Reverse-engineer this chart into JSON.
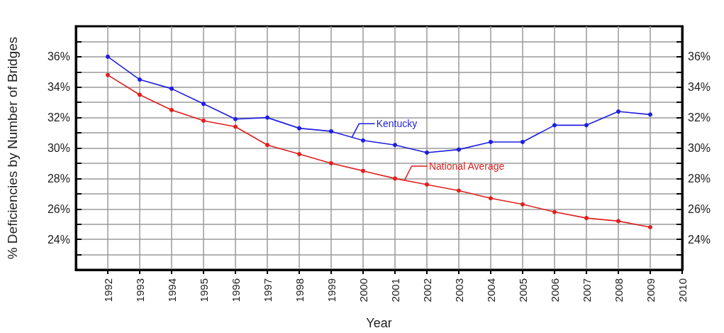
{
  "chart_data": {
    "type": "line",
    "xlabel": "Year",
    "ylabel": "% Deficiencies by Number of Bridges",
    "x": [
      1992,
      1993,
      1994,
      1995,
      1996,
      1997,
      1998,
      1999,
      2000,
      2001,
      2002,
      2003,
      2004,
      2005,
      2006,
      2007,
      2008,
      2009
    ],
    "series": [
      {
        "name": "Kentucky",
        "color": "#1f1fe0",
        "values": [
          36.0,
          34.5,
          33.9,
          32.9,
          31.9,
          32.0,
          31.3,
          31.1,
          30.5,
          30.2,
          29.7,
          29.9,
          30.4,
          30.4,
          31.5,
          31.5,
          32.4,
          32.2
        ]
      },
      {
        "name": "National Average",
        "color": "#e01f1f",
        "values": [
          34.8,
          33.5,
          32.5,
          31.8,
          31.4,
          30.2,
          29.6,
          29.0,
          28.5,
          28.0,
          27.6,
          27.2,
          26.7,
          26.3,
          25.8,
          25.4,
          25.2,
          24.8
        ]
      }
    ],
    "xlim": [
      1991,
      2010
    ],
    "xticks": [
      1992,
      1993,
      1994,
      1995,
      1996,
      1997,
      1998,
      1999,
      2000,
      2001,
      2002,
      2003,
      2004,
      2005,
      2006,
      2007,
      2008,
      2009,
      2010
    ],
    "ylim": [
      22,
      38
    ],
    "yticks": [
      {
        "value": 23,
        "label": null
      },
      {
        "value": 24,
        "label": "24%"
      },
      {
        "value": 25,
        "label": null
      },
      {
        "value": 26,
        "label": "26%"
      },
      {
        "value": 27,
        "label": null
      },
      {
        "value": 28,
        "label": "28%"
      },
      {
        "value": 29,
        "label": null
      },
      {
        "value": 30,
        "label": "30%"
      },
      {
        "value": 31,
        "label": null
      },
      {
        "value": 32,
        "label": "32%"
      },
      {
        "value": 33,
        "label": null
      },
      {
        "value": 34,
        "label": "34%"
      },
      {
        "value": 35,
        "label": null
      },
      {
        "value": 36,
        "label": "36%"
      },
      {
        "value": 37,
        "label": null
      }
    ],
    "y2lim": [
      22,
      38
    ],
    "y2ticks": [
      {
        "value": 23,
        "label": null
      },
      {
        "value": 24,
        "label": "24%"
      },
      {
        "value": 25,
        "label": null
      },
      {
        "value": 26,
        "label": "26%"
      },
      {
        "value": 27,
        "label": null
      },
      {
        "value": 28,
        "label": "28%"
      },
      {
        "value": 29,
        "label": null
      },
      {
        "value": 30,
        "label": "30%"
      },
      {
        "value": 31,
        "label": null
      },
      {
        "value": 32,
        "label": "32%"
      },
      {
        "value": 33,
        "label": null
      },
      {
        "value": 34,
        "label": "34%"
      },
      {
        "value": 35,
        "label": null
      },
      {
        "value": 36,
        "label": "36%"
      },
      {
        "value": 37,
        "label": null
      }
    ],
    "grid": true,
    "marker": "circle",
    "line_style": "solid"
  }
}
